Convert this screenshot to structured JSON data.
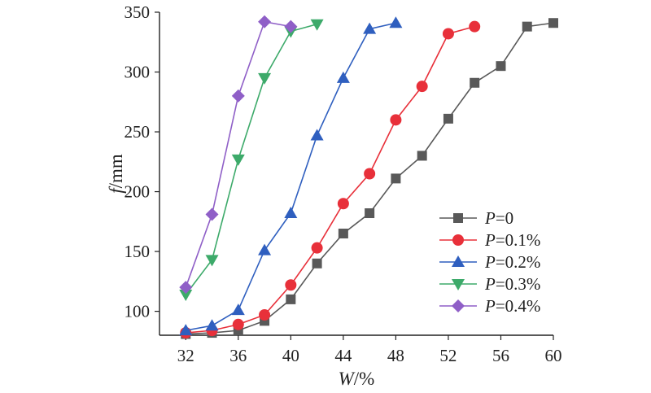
{
  "chart_data": {
    "type": "line",
    "title": "",
    "xlabel": "W/%",
    "xlabel_parts": {
      "variable": "W",
      "unit": "/%"
    },
    "ylabel": "f/mm",
    "ylabel_parts": {
      "variable": "f",
      "unit": "/mm"
    },
    "xlim": [
      30,
      60
    ],
    "ylim": [
      80,
      350
    ],
    "xticks": [
      32,
      36,
      40,
      44,
      48,
      52,
      56,
      60
    ],
    "yticks": [
      100,
      150,
      200,
      250,
      300,
      350
    ],
    "grid": false,
    "legend_position": "right",
    "series": [
      {
        "name": "P=0",
        "name_parts": {
          "variable": "P",
          "rest": "=0"
        },
        "color": "#595959",
        "marker": "square",
        "x": [
          32,
          34,
          36,
          38,
          40,
          42,
          44,
          46,
          48,
          50,
          52,
          54,
          56,
          58,
          60
        ],
        "y": [
          81,
          82,
          84,
          92,
          110,
          140,
          165,
          182,
          211,
          230,
          261,
          291,
          305,
          338,
          341
        ]
      },
      {
        "name": "P=0.1%",
        "name_parts": {
          "variable": "P",
          "rest": "=0.1%"
        },
        "color": "#e8303a",
        "marker": "circle",
        "x": [
          32,
          34,
          36,
          38,
          40,
          42,
          44,
          46,
          48,
          50,
          52,
          54
        ],
        "y": [
          82,
          84,
          89,
          97,
          122,
          153,
          190,
          215,
          260,
          288,
          332,
          338
        ]
      },
      {
        "name": "P=0.2%",
        "name_parts": {
          "variable": "P",
          "rest": "=0.2%"
        },
        "color": "#2f5fbf",
        "marker": "triangle-up",
        "x": [
          32,
          34,
          36,
          38,
          40,
          42,
          44,
          46,
          48
        ],
        "y": [
          84,
          88,
          101,
          151,
          182,
          247,
          295,
          336,
          341
        ]
      },
      {
        "name": "P=0.3%",
        "name_parts": {
          "variable": "P",
          "rest": "=0.3%"
        },
        "color": "#3daa6a",
        "marker": "triangle-down",
        "x": [
          32,
          34,
          36,
          38,
          40,
          42
        ],
        "y": [
          114,
          143,
          227,
          295,
          334,
          340
        ]
      },
      {
        "name": "P=0.4%",
        "name_parts": {
          "variable": "P",
          "rest": "=0.4%"
        },
        "color": "#8f5fc7",
        "marker": "diamond",
        "x": [
          32,
          34,
          36,
          38,
          40
        ],
        "y": [
          120,
          181,
          280,
          342,
          338
        ]
      }
    ]
  }
}
